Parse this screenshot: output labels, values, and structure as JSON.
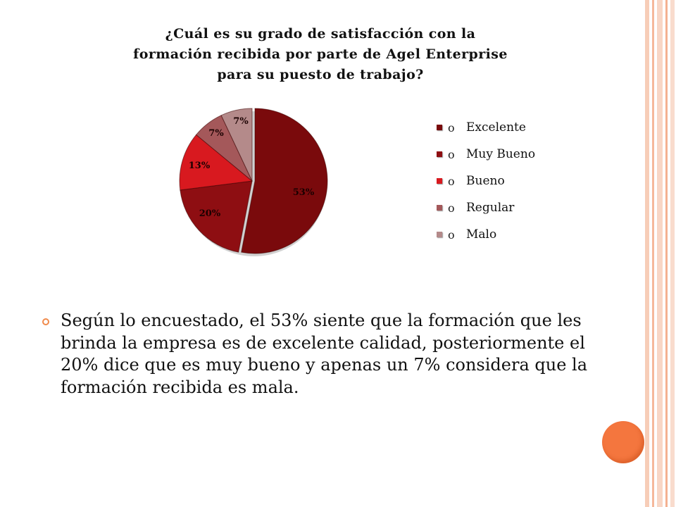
{
  "chart_data": {
    "type": "pie",
    "title_lines": [
      "¿Cuál es su grado de satisfacción con la",
      "formación recibida por parte de Agel Enterprise",
      "para su puesto de trabajo?"
    ],
    "categories": [
      "Excelente",
      "Muy Bueno",
      "Bueno",
      "Regular",
      "Malo"
    ],
    "values": [
      53,
      20,
      13,
      7,
      7
    ],
    "data_labels": [
      "53%",
      "20%",
      "13%",
      "7%",
      "7%"
    ],
    "colors": [
      "#7a0a0c",
      "#8e0e12",
      "#d8191f",
      "#a4585a",
      "#b48a8a"
    ],
    "legend_bullet": "o",
    "legend_position": "right"
  },
  "body": {
    "text": "Según lo encuestado, el 53% siente que la formación que les brinda la empresa es de excelente calidad, posteriormente el 20% dice que es muy bueno y apenas un 7% considera que la formación recibida es mala."
  },
  "theme": {
    "accent": "#f4763e",
    "stripe_color": "#f6c3ab"
  }
}
